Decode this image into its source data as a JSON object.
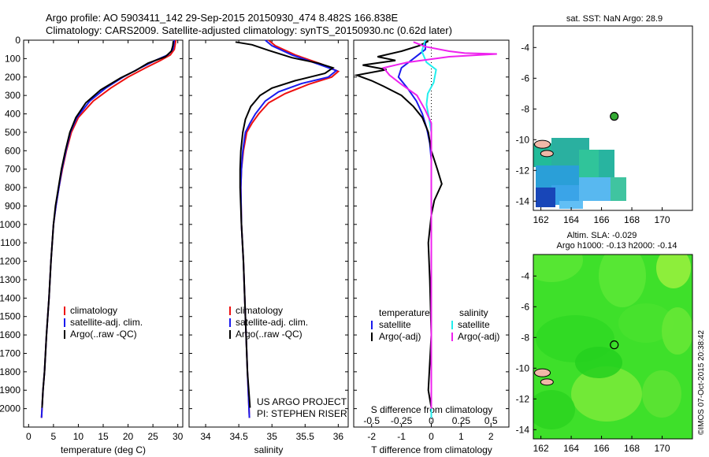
{
  "header": {
    "line1": "Argo profile: AO 5903411_142 29-Sep-2015 20150930_474 8.482S 166.838E",
    "line2": "Climatology: CARS2009. Satellite-adjusted climatology: synTS_20150930.nc (0.62d later)"
  },
  "credit": "©IMOS 07-Oct-2015 20:38:42",
  "colors": {
    "red": "#ee1111",
    "blue": "#1a1aee",
    "black": "#000000",
    "cyan": "#22eeee",
    "magenta": "#ee22ee",
    "land": "#f0b8a8",
    "sla_green": "#44dd22"
  },
  "chart_data": [
    {
      "type": "line",
      "panel": "temperature",
      "xlabel": "temperature (deg C)",
      "ylabel": "",
      "xlim": [
        -1,
        31
      ],
      "ylim": [
        2100,
        0
      ],
      "xticks": [
        0,
        5,
        10,
        15,
        20,
        25,
        30
      ],
      "yticks": [
        0,
        100,
        200,
        300,
        400,
        500,
        600,
        700,
        800,
        900,
        1000,
        1100,
        1200,
        1300,
        1400,
        1500,
        1600,
        1700,
        1800,
        1900,
        2000
      ],
      "legend": [
        "climatology",
        "satellite-adj. clim.",
        "Argo(..raw -QC)"
      ],
      "series": [
        {
          "name": "climatology",
          "color": "red",
          "points": [
            [
              29.6,
              0
            ],
            [
              29.5,
              20
            ],
            [
              29.3,
              50
            ],
            [
              28.5,
              80
            ],
            [
              26.5,
              110
            ],
            [
              23.5,
              150
            ],
            [
              20.0,
              200
            ],
            [
              16.5,
              260
            ],
            [
              13.0,
              330
            ],
            [
              10.0,
              420
            ],
            [
              8.6,
              500
            ],
            [
              7.6,
              600
            ],
            [
              6.8,
              700
            ],
            [
              6.1,
              800
            ],
            [
              5.5,
              900
            ],
            [
              5.0,
              1000
            ],
            [
              4.5,
              1200
            ],
            [
              4.1,
              1400
            ],
            [
              3.6,
              1600
            ],
            [
              3.2,
              1800
            ],
            [
              2.9,
              1900
            ],
            [
              2.6,
              2050
            ]
          ]
        },
        {
          "name": "satellite-adj. clim.",
          "color": "blue",
          "points": [
            [
              29.3,
              0
            ],
            [
              29.2,
              20
            ],
            [
              29.0,
              50
            ],
            [
              28.0,
              80
            ],
            [
              25.5,
              110
            ],
            [
              22.5,
              150
            ],
            [
              19.0,
              200
            ],
            [
              15.5,
              260
            ],
            [
              12.3,
              330
            ],
            [
              9.7,
              420
            ],
            [
              8.4,
              500
            ],
            [
              7.5,
              600
            ],
            [
              6.7,
              700
            ],
            [
              6.1,
              800
            ],
            [
              5.5,
              900
            ],
            [
              5.0,
              1000
            ],
            [
              4.5,
              1200
            ],
            [
              4.1,
              1400
            ],
            [
              3.6,
              1600
            ],
            [
              3.2,
              1800
            ],
            [
              2.9,
              1900
            ],
            [
              2.6,
              2050
            ]
          ]
        },
        {
          "name": "Argo(..raw -QC)",
          "color": "black",
          "points": [
            [
              29.1,
              5
            ],
            [
              29.0,
              30
            ],
            [
              28.7,
              60
            ],
            [
              27.5,
              90
            ],
            [
              24.0,
              125
            ],
            [
              21.5,
              165
            ],
            [
              18.5,
              205
            ],
            [
              14.5,
              270
            ],
            [
              11.5,
              340
            ],
            [
              9.5,
              420
            ],
            [
              8.3,
              500
            ],
            [
              7.4,
              600
            ],
            [
              6.6,
              700
            ],
            [
              6.0,
              800
            ],
            [
              5.4,
              900
            ],
            [
              5.0,
              1000
            ],
            [
              4.5,
              1200
            ],
            [
              4.1,
              1400
            ],
            [
              3.6,
              1600
            ],
            [
              3.2,
              1800
            ],
            [
              2.9,
              1900
            ],
            [
              2.7,
              1995
            ]
          ]
        }
      ]
    },
    {
      "type": "line",
      "panel": "salinity",
      "xlabel": "salinity",
      "ylabel": "",
      "xlim": [
        33.75,
        36.15
      ],
      "ylim": [
        2100,
        0
      ],
      "xticks": [
        34,
        34.5,
        35,
        35.5,
        36
      ],
      "xticklabels": [
        "34",
        "34.5",
        "35",
        "35.5",
        "36"
      ],
      "legend": [
        "climatology",
        "satellite-adj. clim.",
        "Argo(..raw -QC)"
      ],
      "annotation": [
        "US ARGO PROJECT",
        "PI: STEPHEN RISER"
      ],
      "series": [
        {
          "name": "climatology",
          "color": "red",
          "points": [
            [
              34.95,
              0
            ],
            [
              35.05,
              30
            ],
            [
              35.35,
              80
            ],
            [
              35.75,
              130
            ],
            [
              36.0,
              170
            ],
            [
              35.9,
              200
            ],
            [
              35.55,
              240
            ],
            [
              35.2,
              290
            ],
            [
              34.95,
              340
            ],
            [
              34.8,
              400
            ],
            [
              34.7,
              450
            ],
            [
              34.62,
              500
            ],
            [
              34.57,
              600
            ],
            [
              34.54,
              700
            ],
            [
              34.53,
              800
            ],
            [
              34.54,
              1000
            ],
            [
              34.57,
              1200
            ],
            [
              34.6,
              1500
            ],
            [
              34.63,
              1800
            ],
            [
              34.66,
              2050
            ]
          ]
        },
        {
          "name": "satellite-adj. clim.",
          "color": "blue",
          "points": [
            [
              34.9,
              0
            ],
            [
              35.0,
              30
            ],
            [
              35.3,
              80
            ],
            [
              35.7,
              130
            ],
            [
              35.97,
              165
            ],
            [
              35.85,
              200
            ],
            [
              35.45,
              235
            ],
            [
              35.1,
              280
            ],
            [
              34.9,
              330
            ],
            [
              34.75,
              400
            ],
            [
              34.67,
              450
            ],
            [
              34.6,
              500
            ],
            [
              34.56,
              600
            ],
            [
              34.54,
              700
            ],
            [
              34.53,
              800
            ],
            [
              34.54,
              1000
            ],
            [
              34.57,
              1200
            ],
            [
              34.6,
              1500
            ],
            [
              34.63,
              1800
            ],
            [
              34.66,
              2050
            ]
          ]
        },
        {
          "name": "Argo(..raw -QC)",
          "color": "black",
          "points": [
            [
              34.45,
              10
            ],
            [
              34.7,
              25
            ],
            [
              34.95,
              55
            ],
            [
              35.3,
              95
            ],
            [
              35.7,
              125
            ],
            [
              35.92,
              150
            ],
            [
              35.8,
              180
            ],
            [
              35.35,
              220
            ],
            [
              35.0,
              260
            ],
            [
              34.82,
              300
            ],
            [
              34.68,
              360
            ],
            [
              34.6,
              430
            ],
            [
              34.56,
              500
            ],
            [
              34.53,
              600
            ],
            [
              34.52,
              700
            ],
            [
              34.52,
              800
            ],
            [
              34.54,
              1000
            ],
            [
              34.57,
              1200
            ],
            [
              34.6,
              1500
            ],
            [
              34.63,
              1800
            ],
            [
              34.67,
              1995
            ]
          ]
        }
      ]
    },
    {
      "type": "line",
      "panel": "difference",
      "xlabel": "T difference from climatology",
      "xlabel_top": "S difference from climatology",
      "xlim": [
        -2.6,
        2.6
      ],
      "ylim": [
        2100,
        0
      ],
      "xticks": [
        -2,
        -1,
        0,
        1,
        2
      ],
      "sticks": [
        -0.5,
        -0.25,
        0,
        0.25,
        0.5
      ],
      "sticklabels": [
        "-0.5",
        "-0.25",
        "0",
        "0.25",
        "0.5"
      ],
      "legend_temperature": {
        "title": "temperature",
        "items": [
          "satellite",
          "Argo(-adj)"
        ]
      },
      "legend_salinity": {
        "title": "salinity",
        "items": [
          "satellite",
          "Argo(-adj)"
        ]
      },
      "series": [
        {
          "name": "satellite",
          "variable": "temperature",
          "color": "blue",
          "points": [
            [
              -0.2,
              0
            ],
            [
              -0.2,
              50
            ],
            [
              -0.6,
              100
            ],
            [
              -1.0,
              150
            ],
            [
              -1.1,
              200
            ],
            [
              -0.8,
              260
            ],
            [
              -0.5,
              330
            ],
            [
              -0.3,
              400
            ],
            [
              -0.15,
              480
            ],
            [
              -0.05,
              560
            ],
            [
              0,
              650
            ],
            [
              0,
              2050
            ]
          ]
        },
        {
          "name": "Argo(-adj)",
          "variable": "temperature",
          "color": "black",
          "points": [
            [
              -0.1,
              5
            ],
            [
              -0.4,
              30
            ],
            [
              -1.0,
              60
            ],
            [
              -1.8,
              90
            ],
            [
              -1.2,
              110
            ],
            [
              -2.3,
              135
            ],
            [
              -1.5,
              160
            ],
            [
              -2.5,
              190
            ],
            [
              -2.0,
              220
            ],
            [
              -1.6,
              250
            ],
            [
              -1.0,
              300
            ],
            [
              -0.6,
              360
            ],
            [
              -0.3,
              420
            ],
            [
              -0.1,
              500
            ],
            [
              0,
              600
            ],
            [
              0.2,
              700
            ],
            [
              0.35,
              780
            ],
            [
              0.1,
              870
            ],
            [
              0,
              950
            ],
            [
              -0.1,
              1100
            ],
            [
              -0.05,
              1300
            ],
            [
              0,
              1600
            ],
            [
              -0.1,
              1900
            ],
            [
              0,
              1995
            ]
          ]
        },
        {
          "name": "satellite",
          "variable": "salinity",
          "color": "cyan",
          "points": [
            [
              -0.05,
              0
            ],
            [
              -0.08,
              60
            ],
            [
              -0.04,
              120
            ],
            [
              0.04,
              160
            ],
            [
              0.02,
              230
            ],
            [
              -0.03,
              290
            ],
            [
              -0.04,
              350
            ],
            [
              -0.02,
              420
            ],
            [
              0,
              500
            ],
            [
              0,
              2050
            ]
          ]
        },
        {
          "name": "Argo(-adj)",
          "variable": "salinity",
          "color": "magenta",
          "points": [
            [
              -0.15,
              10
            ],
            [
              -0.05,
              35
            ],
            [
              0.15,
              60
            ],
            [
              0.28,
              70
            ],
            [
              0.55,
              75
            ],
            [
              0.15,
              90
            ],
            [
              -0.2,
              120
            ],
            [
              -0.4,
              150
            ],
            [
              -0.35,
              190
            ],
            [
              -0.25,
              240
            ],
            [
              -0.12,
              300
            ],
            [
              -0.05,
              380
            ],
            [
              0,
              450
            ],
            [
              0,
              2000
            ]
          ]
        }
      ]
    }
  ],
  "maps": {
    "sst": {
      "title": "sat. SST: NaN Argo: 28.9",
      "xticks": [
        162,
        164,
        166,
        168,
        170
      ],
      "yticks": [
        -4,
        -6,
        -8,
        -10,
        -12,
        -14
      ],
      "xlim": [
        161.5,
        172.0
      ],
      "ylim": [
        -14.6,
        -2.6
      ],
      "argo_marker": {
        "lon": 166.84,
        "lat": -8.48
      }
    },
    "sla": {
      "title": "Altim. SLA: -0.029",
      "subtitle": "Argo h1000: -0.13 h2000: -0.14",
      "xticks": [
        162,
        164,
        166,
        168,
        170
      ],
      "yticks": [
        -4,
        -6,
        -8,
        -10,
        -12,
        -14
      ],
      "xlim": [
        161.5,
        172.0
      ],
      "ylim": [
        -14.6,
        -2.6
      ],
      "argo_marker": {
        "lon": 166.84,
        "lat": -8.48
      }
    }
  }
}
